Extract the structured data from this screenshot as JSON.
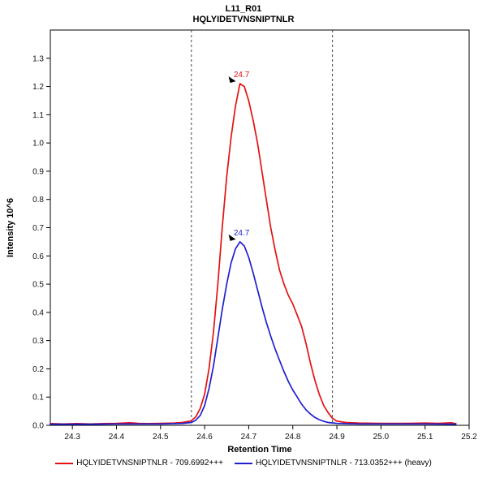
{
  "chart_data": {
    "type": "line",
    "title": "L11_R01",
    "subtitle": "HQLYIDETVNSNIPTNLR",
    "xlabel": "Retention Time",
    "ylabel": "Intensity 10^6",
    "xlim": [
      24.25,
      25.2
    ],
    "ylim": [
      0,
      1.4
    ],
    "x_ticks": [
      24.3,
      24.4,
      24.5,
      24.6,
      24.7,
      24.8,
      24.9,
      25.0,
      25.1,
      25.2
    ],
    "y_ticks": [
      0.0,
      0.1,
      0.2,
      0.3,
      0.4,
      0.5,
      0.6,
      0.7,
      0.8,
      0.9,
      1.0,
      1.1,
      1.2,
      1.3
    ],
    "grid": false,
    "legend_position": "bottom",
    "boundary_lines_x": [
      24.57,
      24.89
    ],
    "boundary_style": "dashed",
    "series": [
      {
        "name": "HQLYIDETVNSNIPTNLR - 709.6992+++",
        "color": "#e41111",
        "peak_label": "24.7",
        "peak": {
          "x": 24.68,
          "y": 1.21
        },
        "points": [
          [
            24.25,
            0.006
          ],
          [
            24.28,
            0.005
          ],
          [
            24.31,
            0.006
          ],
          [
            24.34,
            0.005
          ],
          [
            24.37,
            0.006
          ],
          [
            24.4,
            0.007
          ],
          [
            24.43,
            0.009
          ],
          [
            24.45,
            0.007
          ],
          [
            24.47,
            0.006
          ],
          [
            24.5,
            0.007
          ],
          [
            24.53,
            0.008
          ],
          [
            24.55,
            0.01
          ],
          [
            24.57,
            0.016
          ],
          [
            24.58,
            0.03
          ],
          [
            24.59,
            0.06
          ],
          [
            24.6,
            0.11
          ],
          [
            24.61,
            0.2
          ],
          [
            24.62,
            0.33
          ],
          [
            24.63,
            0.5
          ],
          [
            24.64,
            0.7
          ],
          [
            24.65,
            0.88
          ],
          [
            24.66,
            1.02
          ],
          [
            24.67,
            1.13
          ],
          [
            24.68,
            1.21
          ],
          [
            24.69,
            1.2
          ],
          [
            24.7,
            1.15
          ],
          [
            24.71,
            1.08
          ],
          [
            24.72,
            1.0
          ],
          [
            24.73,
            0.9
          ],
          [
            24.74,
            0.8
          ],
          [
            24.75,
            0.7
          ],
          [
            24.76,
            0.62
          ],
          [
            24.77,
            0.55
          ],
          [
            24.78,
            0.5
          ],
          [
            24.79,
            0.46
          ],
          [
            24.8,
            0.43
          ],
          [
            24.81,
            0.39
          ],
          [
            24.82,
            0.35
          ],
          [
            24.83,
            0.29
          ],
          [
            24.84,
            0.22
          ],
          [
            24.85,
            0.16
          ],
          [
            24.86,
            0.11
          ],
          [
            24.87,
            0.07
          ],
          [
            24.88,
            0.045
          ],
          [
            24.89,
            0.025
          ],
          [
            24.9,
            0.015
          ],
          [
            24.92,
            0.01
          ],
          [
            24.95,
            0.008
          ],
          [
            25.0,
            0.007
          ],
          [
            25.05,
            0.007
          ],
          [
            25.1,
            0.008
          ],
          [
            25.13,
            0.007
          ],
          [
            25.16,
            0.009
          ],
          [
            25.17,
            0.006
          ]
        ]
      },
      {
        "name": "HQLYIDETVNSNIPTNLR - 713.0352+++ (heavy)",
        "color": "#1f1fd0",
        "peak_label": "24.7",
        "peak": {
          "x": 24.68,
          "y": 0.65
        },
        "points": [
          [
            24.25,
            0.004
          ],
          [
            24.3,
            0.004
          ],
          [
            24.35,
            0.004
          ],
          [
            24.4,
            0.005
          ],
          [
            24.45,
            0.005
          ],
          [
            24.5,
            0.005
          ],
          [
            24.55,
            0.007
          ],
          [
            24.57,
            0.01
          ],
          [
            24.58,
            0.018
          ],
          [
            24.59,
            0.035
          ],
          [
            24.6,
            0.07
          ],
          [
            24.61,
            0.13
          ],
          [
            24.62,
            0.21
          ],
          [
            24.63,
            0.31
          ],
          [
            24.64,
            0.41
          ],
          [
            24.65,
            0.5
          ],
          [
            24.66,
            0.575
          ],
          [
            24.67,
            0.625
          ],
          [
            24.68,
            0.65
          ],
          [
            24.69,
            0.635
          ],
          [
            24.7,
            0.595
          ],
          [
            24.71,
            0.54
          ],
          [
            24.72,
            0.48
          ],
          [
            24.73,
            0.42
          ],
          [
            24.74,
            0.365
          ],
          [
            24.75,
            0.315
          ],
          [
            24.76,
            0.27
          ],
          [
            24.77,
            0.23
          ],
          [
            24.78,
            0.19
          ],
          [
            24.79,
            0.155
          ],
          [
            24.8,
            0.125
          ],
          [
            24.81,
            0.1
          ],
          [
            24.82,
            0.075
          ],
          [
            24.83,
            0.055
          ],
          [
            24.84,
            0.04
          ],
          [
            24.85,
            0.028
          ],
          [
            24.86,
            0.02
          ],
          [
            24.87,
            0.014
          ],
          [
            24.88,
            0.01
          ],
          [
            24.9,
            0.007
          ],
          [
            24.95,
            0.005
          ],
          [
            25.0,
            0.005
          ],
          [
            25.05,
            0.005
          ],
          [
            25.1,
            0.005
          ],
          [
            25.17,
            0.004
          ]
        ]
      }
    ]
  }
}
